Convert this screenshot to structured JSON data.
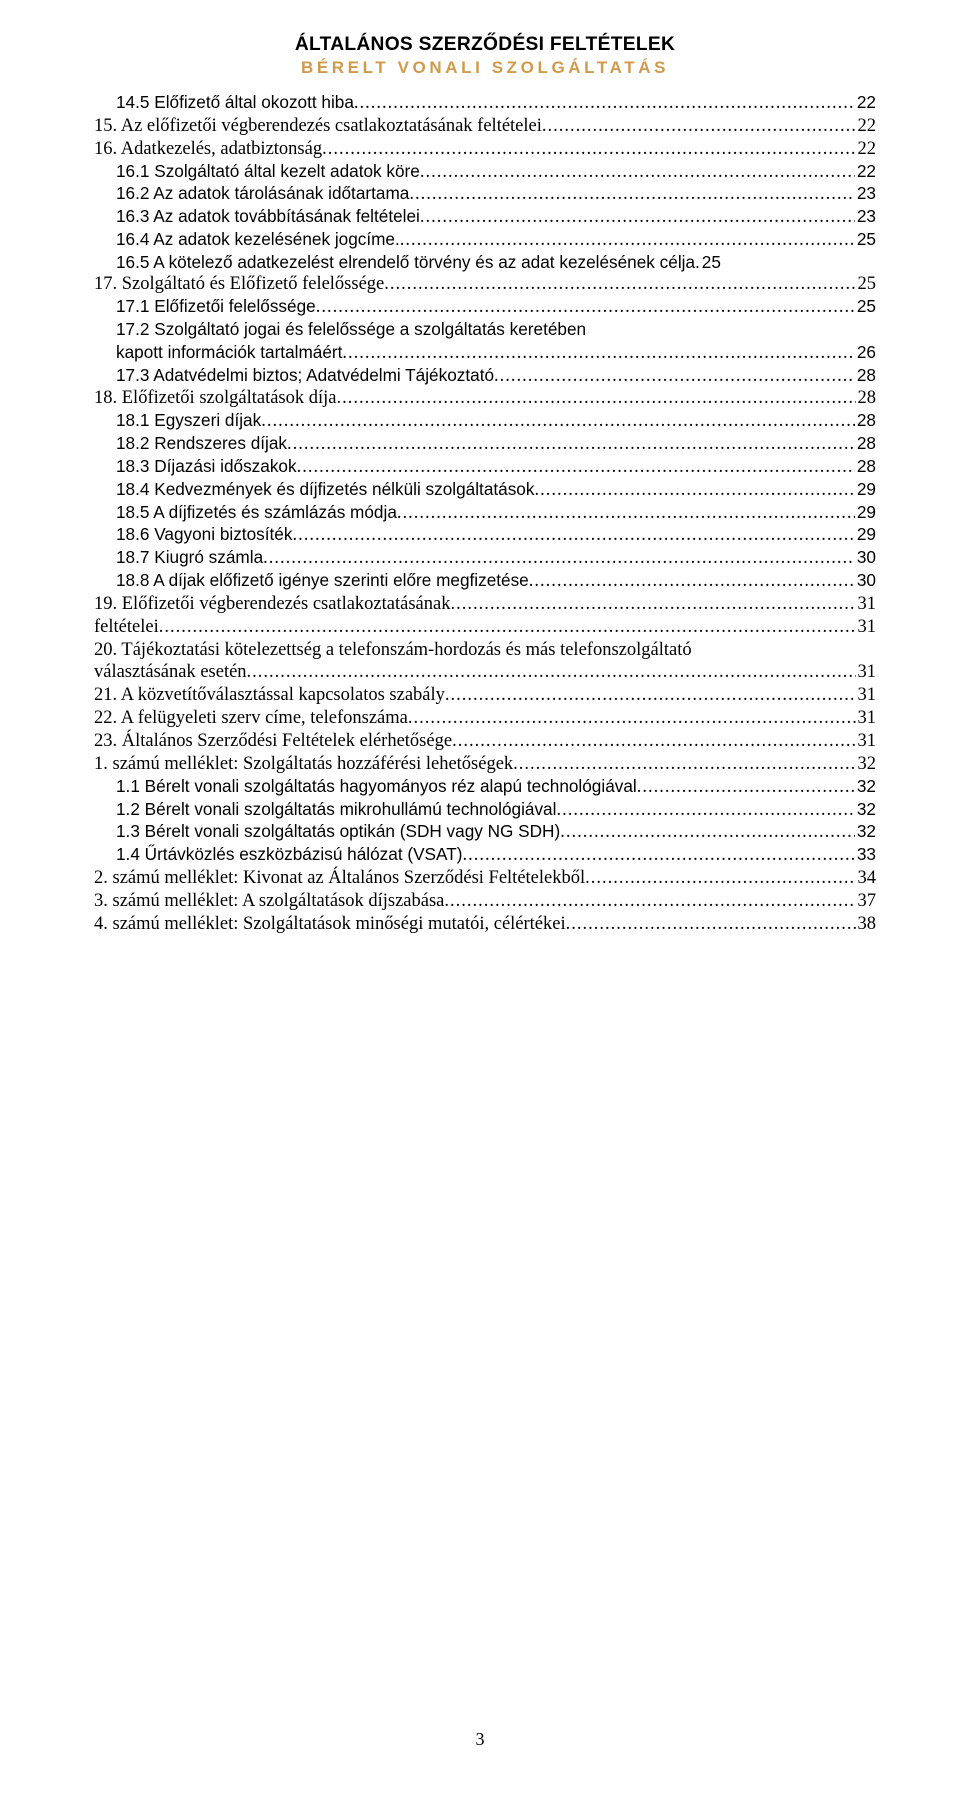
{
  "header": {
    "title": "ÁLTALÁNOS SZERZŐDÉSI FELTÉTELEK",
    "subtitle": "BÉRELT VONALI SZOLGÁLTATÁS"
  },
  "page_number": "3",
  "toc": [
    {
      "label": "14.5 Előfizető által okozott hiba",
      "page": "22",
      "indent": 1,
      "font": "verdana"
    },
    {
      "label": "15. Az előfizetői végberendezés csatlakoztatásának feltételei",
      "page": "22",
      "indent": 0,
      "font": "times"
    },
    {
      "label": "16. Adatkezelés, adatbiztonság",
      "page": "22",
      "indent": 0,
      "font": "times"
    },
    {
      "label": "16.1 Szolgáltató által kezelt adatok köre",
      "page": "22",
      "indent": 1,
      "font": "verdana"
    },
    {
      "label": "16.2 Az adatok tárolásának időtartama",
      "page": "23",
      "indent": 1,
      "font": "verdana"
    },
    {
      "label": "16.3 Az adatok továbbításának feltételei",
      "page": "23",
      "indent": 1,
      "font": "verdana"
    },
    {
      "label": "16.4 Az adatok kezelésének jogcíme.",
      "page": "25",
      "indent": 1,
      "font": "verdana"
    },
    {
      "label": "16.5 A kötelező adatkezelést elrendelő törvény és az adat kezelésének célja.",
      "page": "25",
      "indent": 1,
      "font": "verdana",
      "nodots": true
    },
    {
      "label": "17. Szolgáltató és Előfizető felelőssége",
      "page": "25",
      "indent": 0,
      "font": "times"
    },
    {
      "label": "17.1 Előfizetői felelőssége",
      "page": "25",
      "indent": 1,
      "font": "verdana"
    },
    {
      "label": "17.2 Szolgáltató jogai és felelőssége a szolgáltatás keretében kapott információk tartalmáért",
      "page": "26",
      "indent": 1,
      "font": "verdana",
      "wrap": true
    },
    {
      "label": "17.3 Adatvédelmi biztos; Adatvédelmi Tájékoztató",
      "page": "28",
      "indent": 1,
      "font": "verdana"
    },
    {
      "label": "18. Előfizetői szolgáltatások díja",
      "page": "28",
      "indent": 0,
      "font": "times"
    },
    {
      "label": "18.1 Egyszeri díjak",
      "page": "28",
      "indent": 1,
      "font": "verdana"
    },
    {
      "label": "18.2 Rendszeres díjak",
      "page": "28",
      "indent": 1,
      "font": "verdana"
    },
    {
      "label": "18.3 Díjazási időszakok",
      "page": "28",
      "indent": 1,
      "font": "verdana"
    },
    {
      "label": "18.4 Kedvezmények és díjfizetés nélküli szolgáltatások",
      "page": "29",
      "indent": 1,
      "font": "verdana"
    },
    {
      "label": "18.5 A díjfizetés és számlázás módja",
      "page": "29",
      "indent": 1,
      "font": "verdana"
    },
    {
      "label": "18.6 Vagyoni biztosíték",
      "page": "29",
      "indent": 1,
      "font": "verdana"
    },
    {
      "label": "18.7 Kiugró számla",
      "page": "30",
      "indent": 1,
      "font": "verdana"
    },
    {
      "label": "18.8 A díjak előfizető igénye szerinti előre megfizetése",
      "page": "30",
      "indent": 1,
      "font": "verdana"
    },
    {
      "label": "19. Előfizetői végberendezés csatlakoztatásának",
      "page": "31",
      "indent": 0,
      "font": "times"
    },
    {
      "label": "feltételei",
      "page": "31",
      "indent": 0,
      "font": "times"
    },
    {
      "label": "20. Tájékoztatási kötelezettség a telefonszám-hordozás és más telefonszolgáltató választásának esetén",
      "page": "31",
      "indent": 0,
      "font": "times",
      "wrap": true
    },
    {
      "label": "21. A közvetítőválasztással kapcsolatos szabály",
      "page": "31",
      "indent": 0,
      "font": "times"
    },
    {
      "label": "22. A felügyeleti szerv címe, telefonszáma",
      "page": "31",
      "indent": 0,
      "font": "times"
    },
    {
      "label": "23. Általános Szerződési Feltételek elérhetősége",
      "page": "31",
      "indent": 0,
      "font": "times"
    },
    {
      "label": "1. számú melléklet: Szolgáltatás hozzáférési lehetőségek",
      "page": "32",
      "indent": 0,
      "font": "times"
    },
    {
      "label": "1.1 Bérelt vonali szolgáltatás hagyományos réz alapú technológiával",
      "page": "32",
      "indent": 1,
      "font": "verdana"
    },
    {
      "label": "1.2 Bérelt vonali szolgáltatás mikrohullámú technológiával",
      "page": "32",
      "indent": 1,
      "font": "verdana"
    },
    {
      "label": "1.3 Bérelt vonali szolgáltatás optikán (SDH vagy NG SDH)",
      "page": "32",
      "indent": 1,
      "font": "verdana"
    },
    {
      "label": "1.4 Űrtávközlés eszközbázisú hálózat (VSAT)",
      "page": "33",
      "indent": 1,
      "font": "verdana"
    },
    {
      "label": "2. számú melléklet: Kivonat az Általános Szerződési Feltételekből",
      "page": "34",
      "indent": 0,
      "font": "times"
    },
    {
      "label": "3. számú melléklet: A szolgáltatások díjszabása",
      "page": "37",
      "indent": 0,
      "font": "times"
    },
    {
      "label": "4. számú melléklet: Szolgáltatások minőségi mutatói, célértékei",
      "page": "38",
      "indent": 0,
      "font": "times"
    }
  ]
}
